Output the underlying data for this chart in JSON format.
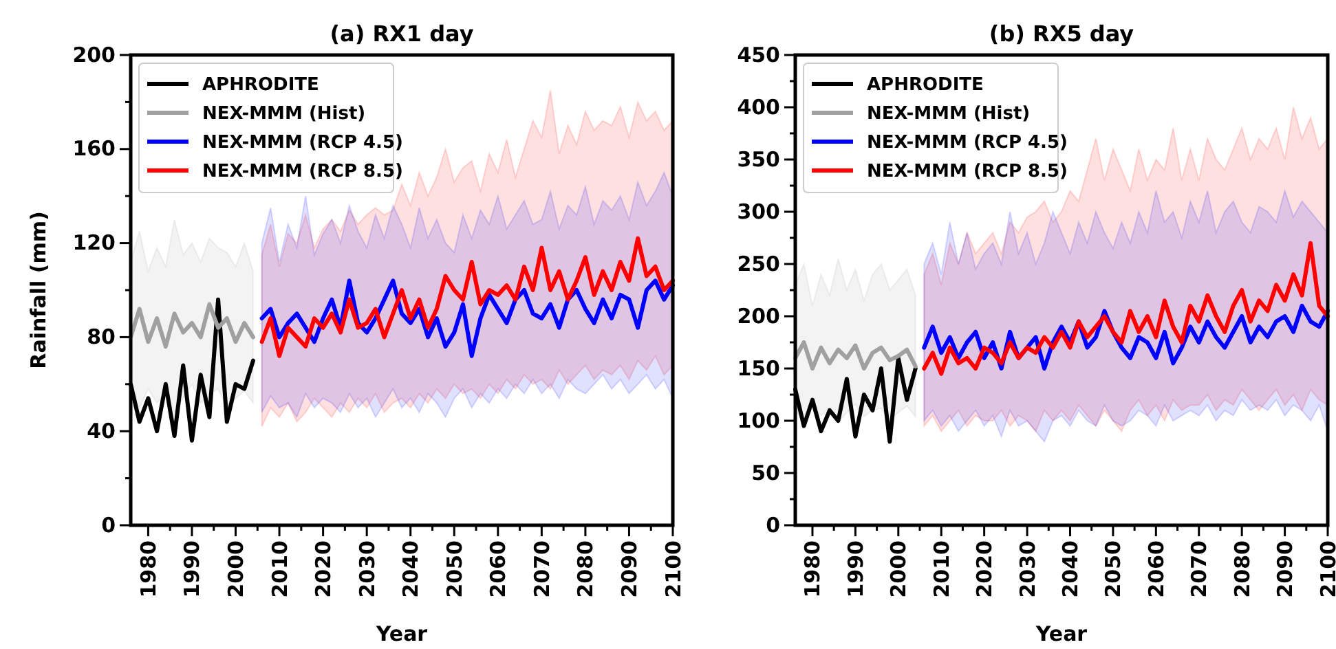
{
  "chart_data": [
    {
      "type": "line",
      "title": "(a) RX1 day",
      "xlabel": "Year",
      "ylabel": "Rainfall (mm)",
      "legend": "top left",
      "grid": false,
      "xlim": [
        1976,
        2100
      ],
      "xticks": [
        1980,
        {
          "value": 1985,
          "label": null
        },
        1990,
        {
          "value": 1995,
          "label": null
        },
        2000,
        {
          "value": 2005,
          "label": null
        },
        2010,
        {
          "value": 2015,
          "label": null
        },
        2020,
        {
          "value": 2025,
          "label": null
        },
        2030,
        {
          "value": 2035,
          "label": null
        },
        2040,
        {
          "value": 2045,
          "label": null
        },
        2050,
        {
          "value": 2055,
          "label": null
        },
        2060,
        {
          "value": 2065,
          "label": null
        },
        2070,
        {
          "value": 2075,
          "label": null
        },
        2080,
        {
          "value": 2085,
          "label": null
        },
        2090,
        {
          "value": 2095,
          "label": null
        },
        2100
      ],
      "ylim": [
        0,
        200
      ],
      "yticks": [
        0,
        {
          "value": 20,
          "label": null
        },
        40,
        {
          "value": 60,
          "label": null
        },
        80,
        {
          "value": 100,
          "label": null
        },
        120,
        {
          "value": 140,
          "label": null
        },
        160,
        {
          "value": 180,
          "label": null
        },
        200
      ],
      "series": [
        {
          "name": "APHRODITE",
          "color": "#000000",
          "x": [
            1976,
            1978,
            1980,
            1982,
            1984,
            1986,
            1988,
            1990,
            1992,
            1994,
            1996,
            1998,
            2000,
            2002,
            2004
          ],
          "values": [
            60,
            44,
            54,
            40,
            60,
            38,
            68,
            36,
            64,
            46,
            96,
            44,
            60,
            58,
            70
          ]
        },
        {
          "name": "NEX-MMM (Hist)",
          "color": "#a0a0a0",
          "x": [
            1976,
            1978,
            1980,
            1982,
            1984,
            1986,
            1988,
            1990,
            1992,
            1994,
            1996,
            1998,
            2000,
            2002,
            2004
          ],
          "values": [
            80,
            92,
            78,
            88,
            76,
            90,
            82,
            86,
            80,
            94,
            84,
            88,
            78,
            86,
            80
          ],
          "lower": [
            55,
            50,
            58,
            52,
            56,
            48,
            54,
            60,
            52,
            56,
            58,
            50,
            54,
            57,
            52
          ],
          "upper": [
            112,
            125,
            108,
            118,
            110,
            130,
            115,
            120,
            112,
            122,
            118,
            116,
            110,
            120,
            108
          ]
        },
        {
          "name": "NEX-MMM (RCP 4.5)",
          "color": "#0000ff",
          "x": [
            2006,
            2008,
            2010,
            2012,
            2014,
            2016,
            2018,
            2020,
            2022,
            2024,
            2026,
            2028,
            2030,
            2032,
            2034,
            2036,
            2038,
            2040,
            2042,
            2044,
            2046,
            2048,
            2050,
            2052,
            2054,
            2056,
            2058,
            2060,
            2062,
            2064,
            2066,
            2068,
            2070,
            2072,
            2074,
            2076,
            2078,
            2080,
            2082,
            2084,
            2086,
            2088,
            2090,
            2092,
            2094,
            2096,
            2098,
            2100
          ],
          "values": [
            88,
            92,
            80,
            86,
            90,
            84,
            78,
            88,
            96,
            84,
            104,
            86,
            82,
            88,
            96,
            104,
            90,
            86,
            92,
            80,
            88,
            76,
            82,
            94,
            72,
            88,
            98,
            92,
            86,
            96,
            100,
            90,
            88,
            94,
            84,
            96,
            100,
            92,
            86,
            96,
            88,
            98,
            96,
            84,
            100,
            104,
            96,
            102
          ],
          "lower": [
            48,
            55,
            50,
            52,
            46,
            56,
            50,
            54,
            52,
            48,
            56,
            50,
            54,
            46,
            52,
            58,
            50,
            54,
            48,
            56,
            52,
            46,
            54,
            58,
            50,
            56,
            52,
            58,
            54,
            60,
            56,
            62,
            56,
            60,
            54,
            62,
            58,
            56,
            60,
            64,
            58,
            62,
            56,
            60,
            64,
            58,
            62,
            54
          ],
          "upper": [
            120,
            135,
            112,
            128,
            118,
            140,
            115,
            124,
            130,
            120,
            136,
            125,
            118,
            132,
            122,
            136,
            128,
            118,
            135,
            122,
            130,
            120,
            116,
            132,
            122,
            134,
            128,
            140,
            126,
            132,
            138,
            128,
            130,
            142,
            126,
            136,
            132,
            144,
            128,
            138,
            134,
            140,
            130,
            146,
            136,
            142,
            150,
            140
          ]
        },
        {
          "name": "NEX-MMM (RCP 8.5)",
          "color": "#ff0000",
          "x": [
            2006,
            2008,
            2010,
            2012,
            2014,
            2016,
            2018,
            2020,
            2022,
            2024,
            2026,
            2028,
            2030,
            2032,
            2034,
            2036,
            2038,
            2040,
            2042,
            2044,
            2046,
            2048,
            2050,
            2052,
            2054,
            2056,
            2058,
            2060,
            2062,
            2064,
            2066,
            2068,
            2070,
            2072,
            2074,
            2076,
            2078,
            2080,
            2082,
            2084,
            2086,
            2088,
            2090,
            2092,
            2094,
            2096,
            2098,
            2100
          ],
          "values": [
            78,
            88,
            72,
            84,
            80,
            76,
            88,
            84,
            90,
            82,
            96,
            84,
            86,
            92,
            80,
            90,
            100,
            88,
            96,
            84,
            92,
            106,
            100,
            96,
            112,
            94,
            100,
            98,
            102,
            96,
            110,
            100,
            118,
            100,
            108,
            96,
            104,
            114,
            98,
            108,
            100,
            112,
            104,
            122,
            106,
            110,
            100,
            104
          ],
          "lower": [
            42,
            50,
            46,
            52,
            44,
            48,
            54,
            50,
            46,
            52,
            48,
            54,
            50,
            56,
            48,
            52,
            54,
            50,
            56,
            52,
            58,
            54,
            60,
            56,
            58,
            54,
            60,
            56,
            62,
            58,
            64,
            60,
            62,
            58,
            66,
            60,
            64,
            68,
            62,
            66,
            64,
            68,
            62,
            70,
            66,
            72,
            64,
            68
          ],
          "upper": [
            115,
            128,
            110,
            124,
            120,
            132,
            118,
            126,
            130,
            125,
            134,
            128,
            132,
            135,
            132,
            134,
            145,
            136,
            150,
            140,
            148,
            160,
            146,
            152,
            155,
            142,
            158,
            150,
            164,
            148,
            160,
            172,
            165,
            185,
            158,
            170,
            162,
            176,
            168,
            172,
            170,
            178,
            165,
            180,
            172,
            176,
            168,
            172
          ]
        }
      ]
    },
    {
      "type": "line",
      "title": "(b) RX5 day",
      "xlabel": "Year",
      "legend": "top left",
      "grid": false,
      "xlim": [
        1976,
        2100
      ],
      "xticks": [
        1980,
        {
          "value": 1985,
          "label": null
        },
        1990,
        {
          "value": 1995,
          "label": null
        },
        2000,
        {
          "value": 2005,
          "label": null
        },
        2010,
        {
          "value": 2015,
          "label": null
        },
        2020,
        {
          "value": 2025,
          "label": null
        },
        2030,
        {
          "value": 2035,
          "label": null
        },
        2040,
        {
          "value": 2045,
          "label": null
        },
        2050,
        {
          "value": 2055,
          "label": null
        },
        2060,
        {
          "value": 2065,
          "label": null
        },
        2070,
        {
          "value": 2075,
          "label": null
        },
        2080,
        {
          "value": 2085,
          "label": null
        },
        2090,
        {
          "value": 2095,
          "label": null
        },
        2100
      ],
      "ylim": [
        0,
        450
      ],
      "yticks": [
        0,
        {
          "value": 25,
          "label": null
        },
        50,
        {
          "value": 75,
          "label": null
        },
        100,
        {
          "value": 125,
          "label": null
        },
        150,
        {
          "value": 175,
          "label": null
        },
        200,
        {
          "value": 225,
          "label": null
        },
        250,
        {
          "value": 275,
          "label": null
        },
        300,
        {
          "value": 325,
          "label": null
        },
        350,
        {
          "value": 375,
          "label": null
        },
        400,
        {
          "value": 425,
          "label": null
        },
        450
      ],
      "series": [
        {
          "name": "APHRODITE",
          "color": "#000000",
          "x": [
            1976,
            1978,
            1980,
            1982,
            1984,
            1986,
            1988,
            1990,
            1992,
            1994,
            1996,
            1998,
            2000,
            2002,
            2004
          ],
          "values": [
            130,
            95,
            120,
            90,
            110,
            100,
            140,
            85,
            125,
            110,
            150,
            80,
            160,
            120,
            150
          ]
        },
        {
          "name": "NEX-MMM (Hist)",
          "color": "#a0a0a0",
          "x": [
            1976,
            1978,
            1980,
            1982,
            1984,
            1986,
            1988,
            1990,
            1992,
            1994,
            1996,
            1998,
            2000,
            2002,
            2004
          ],
          "values": [
            160,
            175,
            150,
            170,
            155,
            168,
            160,
            172,
            150,
            165,
            170,
            158,
            162,
            168,
            152
          ],
          "lower": [
            110,
            100,
            115,
            105,
            112,
            98,
            108,
            116,
            104,
            110,
            112,
            100,
            108,
            114,
            104
          ],
          "upper": [
            230,
            250,
            210,
            240,
            220,
            255,
            225,
            245,
            215,
            240,
            250,
            225,
            235,
            245,
            220
          ]
        },
        {
          "name": "NEX-MMM (RCP 4.5)",
          "color": "#0000ff",
          "x": [
            2006,
            2008,
            2010,
            2012,
            2014,
            2016,
            2018,
            2020,
            2022,
            2024,
            2026,
            2028,
            2030,
            2032,
            2034,
            2036,
            2038,
            2040,
            2042,
            2044,
            2046,
            2048,
            2050,
            2052,
            2054,
            2056,
            2058,
            2060,
            2062,
            2064,
            2066,
            2068,
            2070,
            2072,
            2074,
            2076,
            2078,
            2080,
            2082,
            2084,
            2086,
            2088,
            2090,
            2092,
            2094,
            2096,
            2098,
            2100
          ],
          "values": [
            170,
            190,
            165,
            180,
            160,
            175,
            185,
            160,
            175,
            150,
            185,
            160,
            170,
            180,
            150,
            175,
            190,
            175,
            195,
            170,
            180,
            205,
            185,
            170,
            160,
            180,
            175,
            160,
            185,
            155,
            170,
            190,
            175,
            195,
            180,
            170,
            185,
            200,
            175,
            190,
            180,
            195,
            200,
            185,
            210,
            195,
            190,
            205
          ],
          "lower": [
            100,
            110,
            95,
            105,
            90,
            100,
            110,
            95,
            105,
            85,
            110,
            95,
            100,
            90,
            80,
            100,
            105,
            95,
            110,
            100,
            95,
            115,
            100,
            95,
            100,
            110,
            105,
            95,
            115,
            100,
            105,
            110,
            105,
            115,
            100,
            110,
            105,
            120,
            110,
            115,
            110,
            120,
            105,
            115,
            110,
            100,
            115,
            90
          ],
          "upper": [
            250,
            270,
            240,
            290,
            250,
            280,
            245,
            260,
            270,
            250,
            300,
            260,
            280,
            250,
            270,
            300,
            280,
            260,
            290,
            270,
            300,
            280,
            265,
            290,
            270,
            300,
            280,
            320,
            290,
            300,
            275,
            310,
            290,
            320,
            280,
            300,
            310,
            290,
            280,
            305,
            300,
            290,
            320,
            295,
            310,
            300,
            290,
            280
          ]
        },
        {
          "name": "NEX-MMM (RCP 8.5)",
          "color": "#ff0000",
          "x": [
            2006,
            2008,
            2010,
            2012,
            2014,
            2016,
            2018,
            2020,
            2022,
            2024,
            2026,
            2028,
            2030,
            2032,
            2034,
            2036,
            2038,
            2040,
            2042,
            2044,
            2046,
            2048,
            2050,
            2052,
            2054,
            2056,
            2058,
            2060,
            2062,
            2064,
            2066,
            2068,
            2070,
            2072,
            2074,
            2076,
            2078,
            2080,
            2082,
            2084,
            2086,
            2088,
            2090,
            2092,
            2094,
            2096,
            2098,
            2100
          ],
          "values": [
            150,
            165,
            145,
            170,
            155,
            160,
            150,
            170,
            165,
            155,
            175,
            160,
            170,
            165,
            180,
            170,
            185,
            170,
            195,
            180,
            190,
            200,
            185,
            175,
            205,
            185,
            200,
            180,
            215,
            190,
            175,
            210,
            195,
            220,
            200,
            185,
            210,
            225,
            195,
            215,
            205,
            230,
            215,
            240,
            220,
            270,
            210,
            200
          ],
          "lower": [
            95,
            105,
            90,
            100,
            110,
            95,
            105,
            100,
            100,
            110,
            95,
            105,
            100,
            90,
            110,
            100,
            110,
            100,
            115,
            105,
            95,
            110,
            100,
            90,
            110,
            120,
            105,
            115,
            100,
            120,
            110,
            115,
            115,
            125,
            110,
            120,
            115,
            130,
            120,
            110,
            120,
            130,
            115,
            125,
            110,
            130,
            120,
            115
          ],
          "upper": [
            240,
            260,
            230,
            270,
            250,
            280,
            260,
            270,
            280,
            260,
            290,
            280,
            295,
            300,
            310,
            290,
            300,
            320,
            310,
            340,
            370,
            330,
            360,
            340,
            320,
            360,
            330,
            350,
            340,
            380,
            330,
            360,
            330,
            370,
            350,
            340,
            360,
            380,
            350,
            370,
            360,
            380,
            350,
            400,
            370,
            390,
            360,
            370
          ]
        }
      ]
    }
  ]
}
